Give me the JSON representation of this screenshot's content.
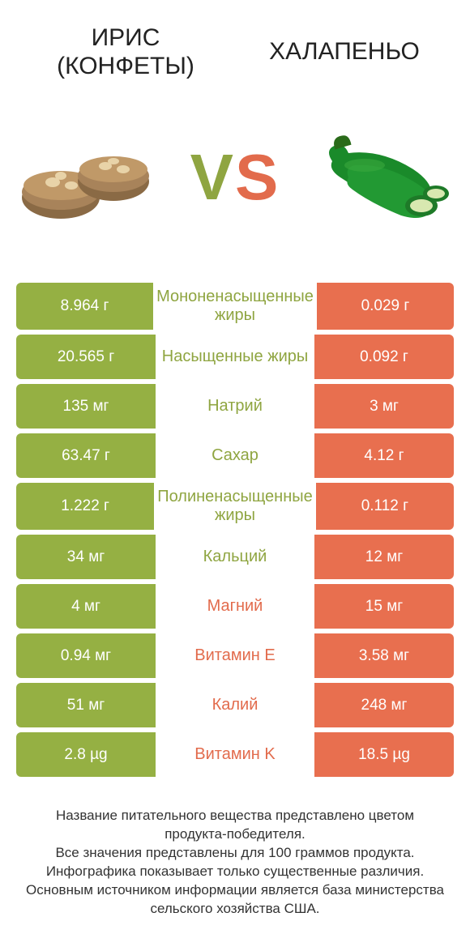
{
  "colors": {
    "green": "#95b043",
    "orange": "#e86f4f",
    "green_text": "#8fa541",
    "orange_text": "#e26b4c"
  },
  "header": {
    "left_title": "ИРИС (КОНФЕТЫ)",
    "right_title": "ХАЛАПЕНЬО"
  },
  "vs": {
    "v": "V",
    "s": "S"
  },
  "rows": [
    {
      "left": "8.964 г",
      "label": "Мононенасыщенные жиры",
      "right": "0.029 г",
      "winner": "left"
    },
    {
      "left": "20.565 г",
      "label": "Насыщенные жиры",
      "right": "0.092 г",
      "winner": "left"
    },
    {
      "left": "135 мг",
      "label": "Натрий",
      "right": "3 мг",
      "winner": "left"
    },
    {
      "left": "63.47 г",
      "label": "Сахар",
      "right": "4.12 г",
      "winner": "left"
    },
    {
      "left": "1.222 г",
      "label": "Полиненасыщенные жиры",
      "right": "0.112 г",
      "winner": "left"
    },
    {
      "left": "34 мг",
      "label": "Кальций",
      "right": "12 мг",
      "winner": "left"
    },
    {
      "left": "4 мг",
      "label": "Магний",
      "right": "15 мг",
      "winner": "right"
    },
    {
      "left": "0.94 мг",
      "label": "Витамин E",
      "right": "3.58 мг",
      "winner": "right"
    },
    {
      "left": "51 мг",
      "label": "Калий",
      "right": "248 мг",
      "winner": "right"
    },
    {
      "left": "2.8 µg",
      "label": "Витамин K",
      "right": "18.5 µg",
      "winner": "right"
    }
  ],
  "footer": {
    "line1": "Название питательного вещества представлено цветом продукта-победителя.",
    "line2": "Все значения представлены для 100 граммов продукта.",
    "line3": "Инфографика показывает только существенные различия.",
    "line4": "Основным источником информации является база министерства сельского хозяйства США."
  }
}
